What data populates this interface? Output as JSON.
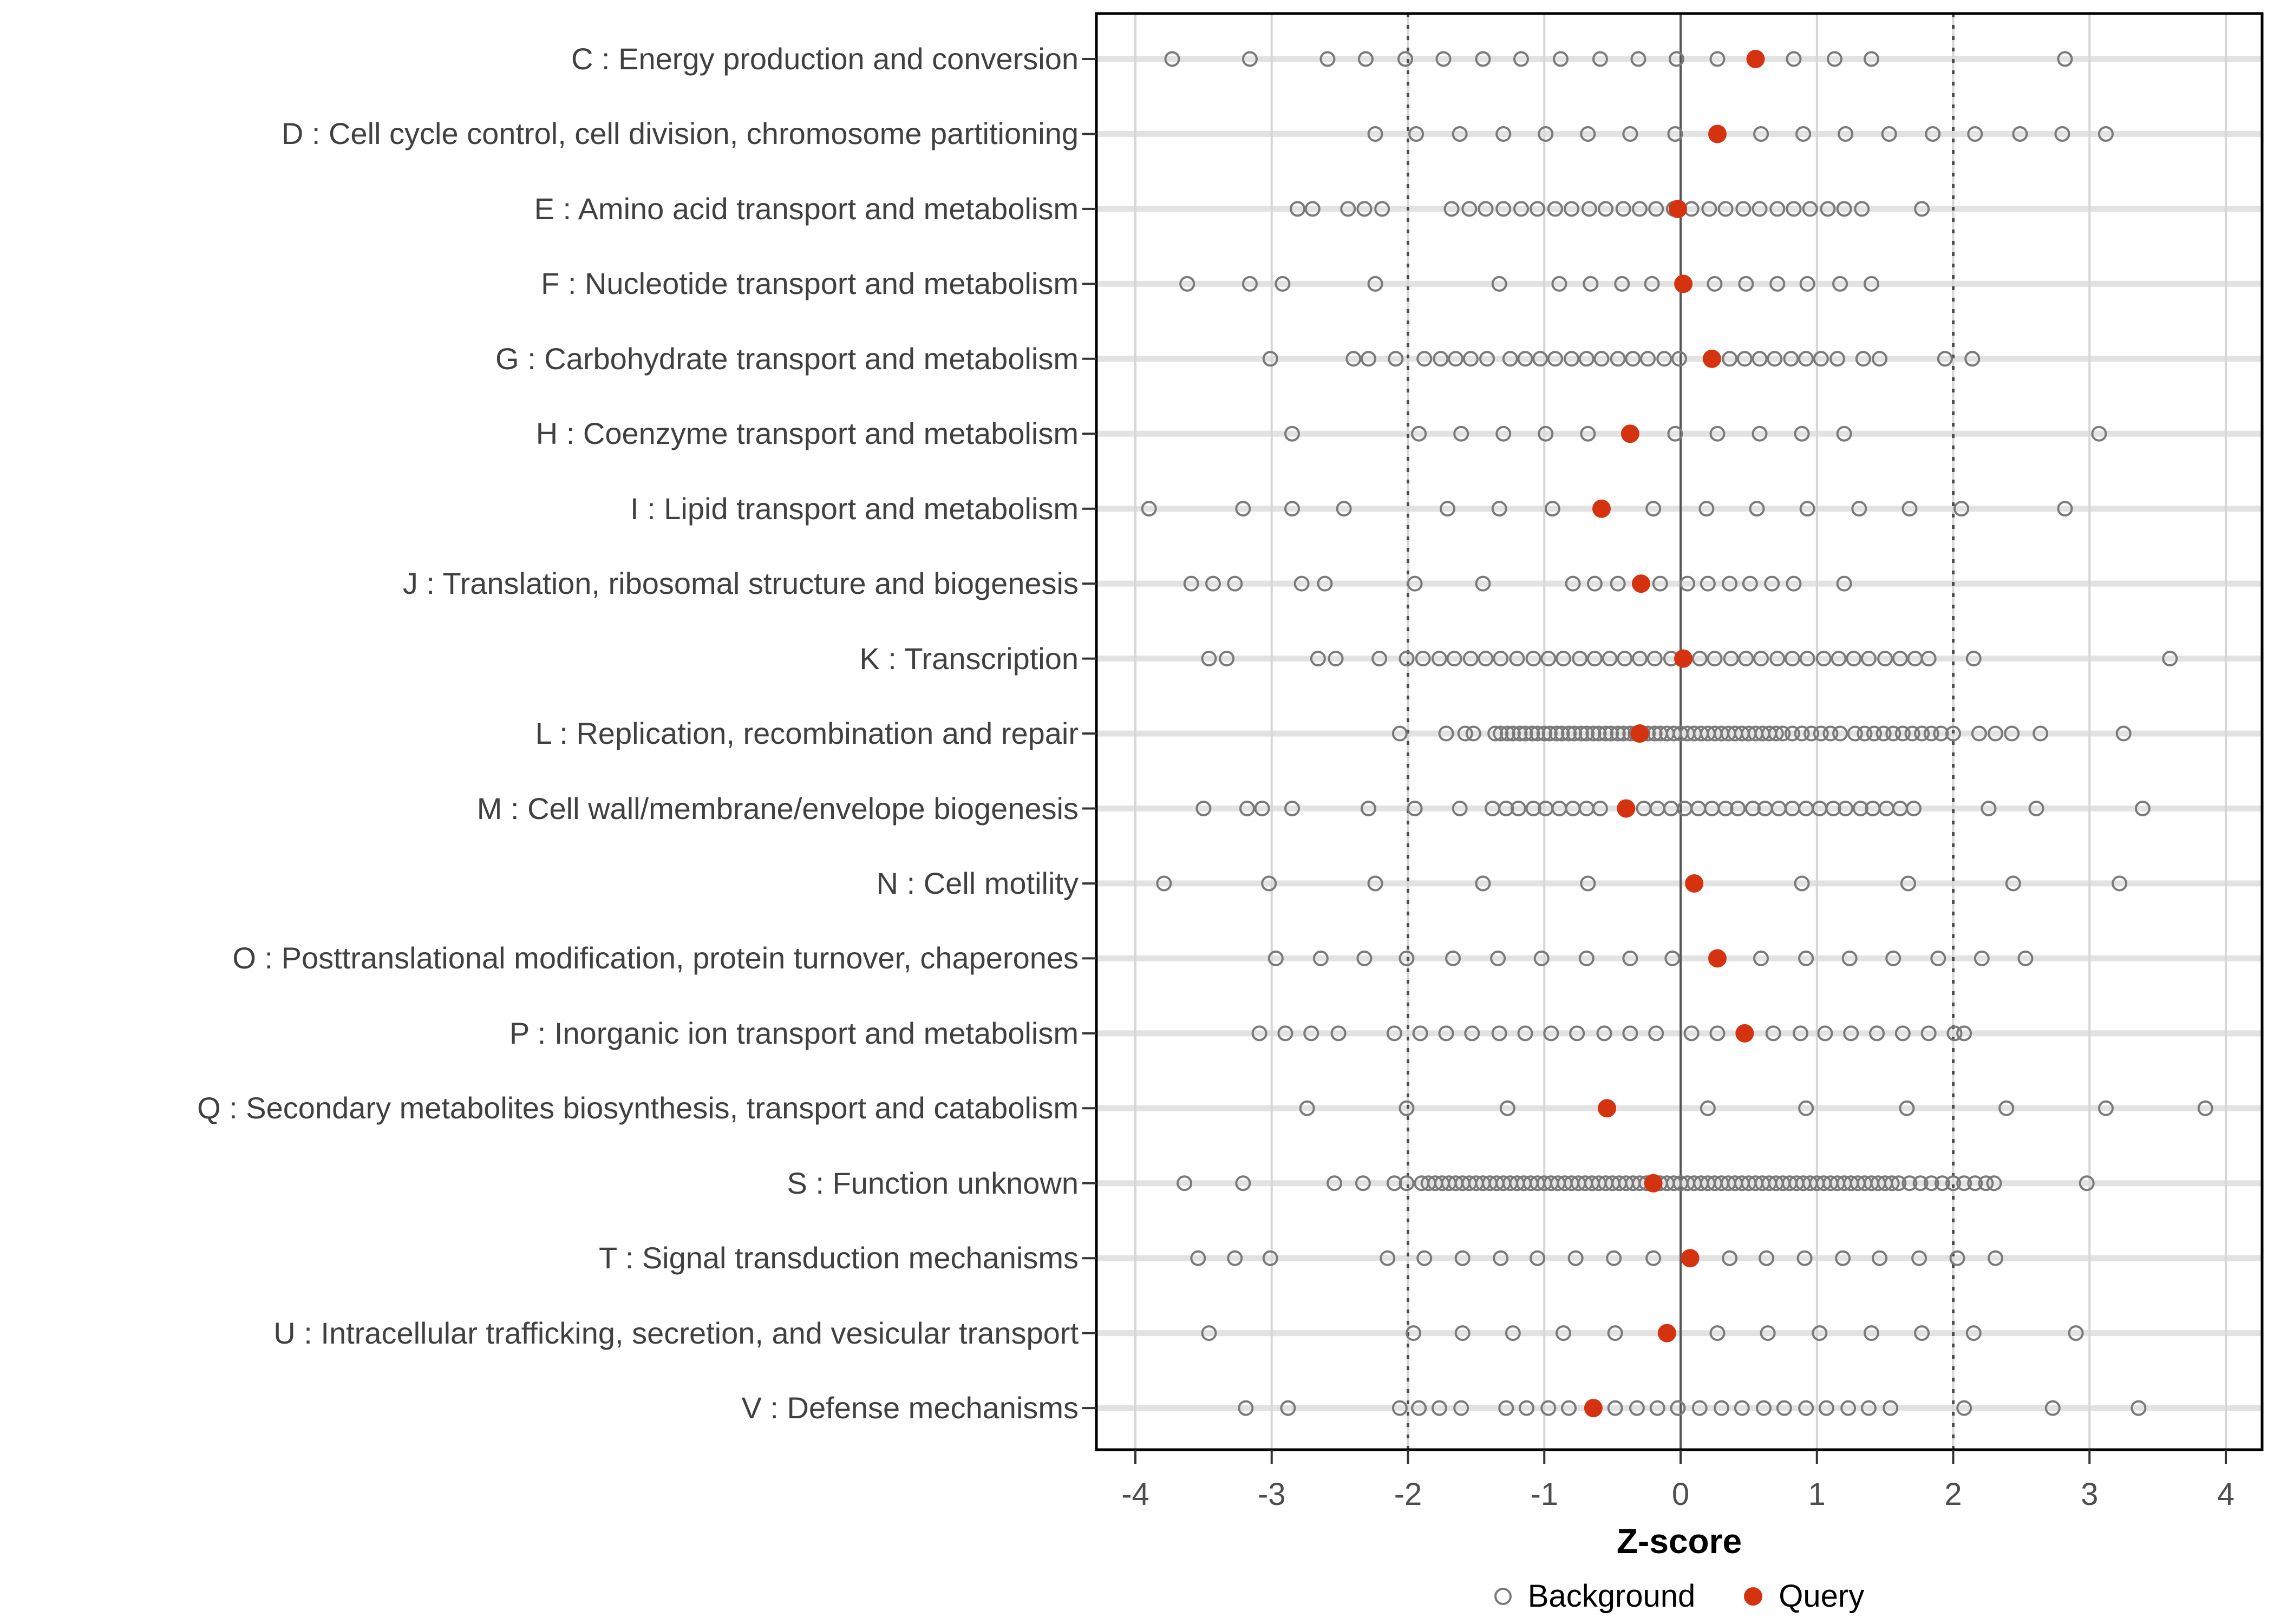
{
  "page": {
    "background": "#FFFFFF"
  },
  "colors": {
    "query": "#D53310",
    "background_stroke": "#7A7A7A",
    "grid": "#D6D6D6",
    "strip": "#E2E2E2",
    "zero_line": "#555555",
    "dashed_line": "#4D4D4D",
    "axis_text": "#4D4D4D",
    "tick": "#333333",
    "panel_border": "#000000"
  },
  "legend": {
    "background_label": "Background",
    "query_label": "Query"
  },
  "chart_data": {
    "type": "scatter",
    "title": "",
    "xlabel": "Z-score",
    "ylabel": "",
    "xlim": [
      -4.29,
      4.27
    ],
    "x_ticks": [
      "-4",
      "-3",
      "-2",
      "-1",
      "0",
      "1",
      "2",
      "3",
      "4"
    ],
    "x_tick_values": [
      -4,
      -3,
      -2,
      -1,
      0,
      1,
      2,
      3,
      4
    ],
    "grid": true,
    "legend_position": "bottom",
    "series_legend": [
      "Background",
      "Query"
    ],
    "reference_lines": {
      "solid": [
        0
      ],
      "dashed": [
        -2,
        2
      ]
    },
    "categories": [
      {
        "code": "C",
        "label": "C : Energy production and conversion",
        "query": 0.55,
        "background": [
          -3.73,
          -3.16,
          -2.59,
          -2.31,
          -2.02,
          -1.74,
          -1.45,
          -1.17,
          -0.88,
          -0.59,
          -0.31,
          -0.03,
          0.27,
          0.83,
          1.13,
          1.4,
          2.82
        ]
      },
      {
        "code": "D",
        "label": "D : Cell cycle control, cell division, chromosome partitioning",
        "query": 0.27,
        "background": [
          -2.24,
          -1.94,
          -1.62,
          -1.3,
          -0.99,
          -0.68,
          -0.37,
          -0.04,
          0.59,
          0.9,
          1.21,
          1.53,
          1.85,
          2.16,
          2.49,
          2.8,
          3.12
        ]
      },
      {
        "code": "E",
        "label": "E : Amino acid transport and metabolism",
        "query": -0.02,
        "background": [
          -2.81,
          -2.7,
          -2.44,
          -2.32,
          -2.19,
          -1.68,
          -1.55,
          -1.43,
          -1.3,
          -1.17,
          -1.05,
          -0.92,
          -0.8,
          -0.67,
          -0.55,
          -0.42,
          -0.3,
          -0.18,
          -0.05,
          0.08,
          0.21,
          0.33,
          0.46,
          0.58,
          0.71,
          0.83,
          0.95,
          1.08,
          1.2,
          1.33,
          1.77
        ]
      },
      {
        "code": "F",
        "label": "F : Nucleotide transport and metabolism",
        "query": 0.02,
        "background": [
          -3.62,
          -3.16,
          -2.92,
          -2.24,
          -1.33,
          -0.89,
          -0.66,
          -0.43,
          -0.21,
          0.25,
          0.48,
          0.71,
          0.93,
          1.17,
          1.4
        ]
      },
      {
        "code": "G",
        "label": "G : Carbohydrate transport and metabolism",
        "query": 0.23,
        "background": [
          -3.01,
          -2.4,
          -2.29,
          -2.09,
          -1.88,
          -1.76,
          -1.65,
          -1.54,
          -1.42,
          -1.25,
          -1.14,
          -1.03,
          -0.92,
          -0.8,
          -0.69,
          -0.58,
          -0.46,
          -0.35,
          -0.24,
          -0.12,
          -0.01,
          0.36,
          0.47,
          0.58,
          0.69,
          0.81,
          0.92,
          1.03,
          1.15,
          1.34,
          1.46,
          1.94,
          2.14
        ]
      },
      {
        "code": "H",
        "label": "H : Coenzyme transport and metabolism",
        "query": -0.37,
        "background": [
          -2.85,
          -1.92,
          -1.61,
          -1.3,
          -0.99,
          -0.68,
          -0.04,
          0.27,
          0.58,
          0.89,
          1.2,
          3.07
        ]
      },
      {
        "code": "I",
        "label": "I : Lipid transport and metabolism",
        "query": -0.58,
        "background": [
          -3.9,
          -3.21,
          -2.85,
          -2.47,
          -1.71,
          -1.33,
          -0.94,
          -0.2,
          0.19,
          0.56,
          0.93,
          1.31,
          1.68,
          2.06,
          2.82
        ]
      },
      {
        "code": "J",
        "label": "J : Translation, ribosomal structure and biogenesis",
        "query": -0.29,
        "background": [
          -3.59,
          -3.43,
          -3.27,
          -2.78,
          -2.61,
          -1.95,
          -1.45,
          -0.79,
          -0.63,
          -0.46,
          -0.15,
          0.05,
          0.2,
          0.36,
          0.51,
          0.67,
          0.83,
          1.2
        ]
      },
      {
        "code": "K",
        "label": "K : Transcription",
        "query": 0.02,
        "background": [
          -3.46,
          -3.33,
          -2.66,
          -2.53,
          -2.21,
          -2.01,
          -1.89,
          -1.77,
          -1.66,
          -1.54,
          -1.43,
          -1.32,
          -1.2,
          -1.08,
          -0.97,
          -0.86,
          -0.74,
          -0.63,
          -0.52,
          -0.41,
          -0.3,
          -0.19,
          -0.07,
          0.14,
          0.25,
          0.37,
          0.48,
          0.59,
          0.71,
          0.82,
          0.93,
          1.05,
          1.16,
          1.27,
          1.38,
          1.5,
          1.61,
          1.72,
          1.82,
          2.15,
          3.59
        ]
      },
      {
        "code": "L",
        "label": "L : Replication, recombination and repair",
        "query": -0.3,
        "background": [
          -2.06,
          -1.72,
          -1.58,
          -1.52,
          -1.36,
          -1.32,
          -1.27,
          -1.23,
          -1.18,
          -1.14,
          -1.09,
          -1.05,
          -1.0,
          -0.96,
          -0.91,
          -0.87,
          -0.82,
          -0.78,
          -0.73,
          -0.69,
          -0.64,
          -0.6,
          -0.55,
          -0.51,
          -0.46,
          -0.42,
          -0.37,
          -0.33,
          -0.28,
          -0.24,
          -0.19,
          -0.15,
          -0.1,
          -0.05,
          0.0,
          0.05,
          0.1,
          0.15,
          0.2,
          0.25,
          0.3,
          0.35,
          0.4,
          0.45,
          0.5,
          0.55,
          0.6,
          0.65,
          0.7,
          0.75,
          0.82,
          0.89,
          0.96,
          1.03,
          1.1,
          1.17,
          1.28,
          1.35,
          1.42,
          1.49,
          1.56,
          1.63,
          1.7,
          1.77,
          1.84,
          1.91,
          2.0,
          2.19,
          2.31,
          2.43,
          2.64,
          3.25
        ]
      },
      {
        "code": "M",
        "label": "M : Cell wall/membrane/envelope biogenesis",
        "query": -0.4,
        "background": [
          -3.5,
          -3.18,
          -3.07,
          -2.85,
          -2.29,
          -1.95,
          -1.62,
          -1.38,
          -1.28,
          -1.19,
          -1.08,
          -0.99,
          -0.89,
          -0.79,
          -0.69,
          -0.59,
          -0.27,
          -0.17,
          -0.07,
          0.03,
          0.13,
          0.23,
          0.33,
          0.42,
          0.53,
          0.62,
          0.72,
          0.82,
          0.92,
          1.02,
          1.12,
          1.21,
          1.32,
          1.41,
          1.51,
          1.61,
          1.71,
          2.26,
          2.61,
          3.39
        ]
      },
      {
        "code": "N",
        "label": "N : Cell motility",
        "query": 0.1,
        "background": [
          -3.79,
          -3.02,
          -2.24,
          -1.45,
          -0.68,
          0.89,
          1.67,
          2.44,
          3.22
        ]
      },
      {
        "code": "O",
        "label": "O : Posttranslational modification, protein turnover, chaperones",
        "query": 0.27,
        "background": [
          -2.97,
          -2.64,
          -2.32,
          -2.01,
          -1.67,
          -1.34,
          -1.02,
          -0.69,
          -0.37,
          -0.06,
          0.59,
          0.92,
          1.24,
          1.56,
          1.89,
          2.21,
          2.53
        ]
      },
      {
        "code": "P",
        "label": "P : Inorganic ion transport and metabolism",
        "query": 0.47,
        "background": [
          -3.09,
          -2.9,
          -2.71,
          -2.51,
          -2.1,
          -1.91,
          -1.72,
          -1.53,
          -1.33,
          -1.14,
          -0.95,
          -0.76,
          -0.56,
          -0.37,
          -0.18,
          0.08,
          0.27,
          0.68,
          0.88,
          1.06,
          1.25,
          1.44,
          1.63,
          1.82,
          2.01,
          2.08
        ]
      },
      {
        "code": "Q",
        "label": "Q : Secondary metabolites biosynthesis, transport and catabolism",
        "query": -0.54,
        "background": [
          -2.74,
          -2.01,
          -1.27,
          0.2,
          0.92,
          1.66,
          2.39,
          3.12,
          3.85
        ]
      },
      {
        "code": "S",
        "label": "S : Function unknown",
        "query": -0.2,
        "background": [
          -3.64,
          -3.21,
          -2.54,
          -2.33,
          -2.1,
          -2.01,
          -1.9,
          -1.85,
          -1.8,
          -1.75,
          -1.7,
          -1.65,
          -1.6,
          -1.55,
          -1.5,
          -1.45,
          -1.4,
          -1.35,
          -1.3,
          -1.25,
          -1.2,
          -1.15,
          -1.1,
          -1.05,
          -1.0,
          -0.95,
          -0.9,
          -0.85,
          -0.8,
          -0.75,
          -0.7,
          -0.65,
          -0.6,
          -0.55,
          -0.5,
          -0.45,
          -0.4,
          -0.35,
          -0.3,
          -0.25,
          -0.15,
          -0.1,
          -0.05,
          0.0,
          0.05,
          0.1,
          0.15,
          0.2,
          0.25,
          0.3,
          0.35,
          0.4,
          0.45,
          0.5,
          0.55,
          0.6,
          0.65,
          0.7,
          0.75,
          0.8,
          0.85,
          0.9,
          0.95,
          1.0,
          1.05,
          1.1,
          1.15,
          1.2,
          1.25,
          1.3,
          1.35,
          1.4,
          1.45,
          1.5,
          1.55,
          1.6,
          1.68,
          1.76,
          1.84,
          1.92,
          2.0,
          2.08,
          2.16,
          2.24,
          2.3,
          2.98
        ]
      },
      {
        "code": "T",
        "label": "T : Signal transduction mechanisms",
        "query": 0.07,
        "background": [
          -3.54,
          -3.27,
          -3.01,
          -2.15,
          -1.88,
          -1.6,
          -1.32,
          -1.05,
          -0.77,
          -0.49,
          -0.2,
          0.36,
          0.63,
          0.91,
          1.19,
          1.46,
          1.75,
          2.03,
          2.31
        ]
      },
      {
        "code": "U",
        "label": "U : Intracellular trafficking, secretion, and vesicular transport",
        "query": -0.1,
        "background": [
          -3.46,
          -1.96,
          -1.6,
          -1.23,
          -0.86,
          -0.48,
          0.27,
          0.64,
          1.02,
          1.4,
          1.77,
          2.15,
          2.9
        ]
      },
      {
        "code": "V",
        "label": "V : Defense mechanisms",
        "query": -0.64,
        "background": [
          -3.19,
          -2.88,
          -2.06,
          -1.92,
          -1.77,
          -1.61,
          -1.28,
          -1.13,
          -0.97,
          -0.82,
          -0.48,
          -0.32,
          -0.17,
          -0.02,
          0.14,
          0.3,
          0.45,
          0.61,
          0.76,
          0.92,
          1.07,
          1.23,
          1.38,
          1.54,
          2.08,
          2.73,
          3.36
        ]
      }
    ]
  }
}
